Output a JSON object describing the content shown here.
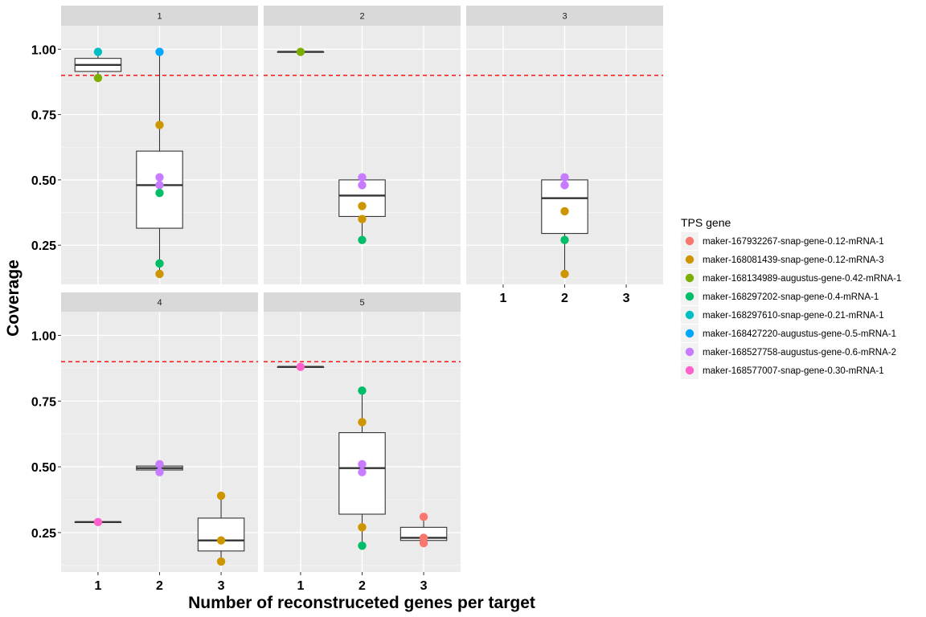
{
  "chart_data": {
    "type": "boxplot",
    "facet_label": "",
    "xlabel": "Number of reconstruceted genes per target",
    "ylabel": "Coverage",
    "x_ticks": [
      "1",
      "2",
      "3"
    ],
    "y_ticks": [
      "0.25",
      "0.50",
      "0.75",
      "1.00"
    ],
    "ylim": [
      0.1,
      1.09
    ],
    "reference_line": {
      "y": 0.9,
      "color": "#FF0000",
      "style": "dashed"
    },
    "legend": {
      "title": "TPS gene",
      "position": "right",
      "entries": [
        {
          "name": "maker-167932267-snap-gene-0.12-mRNA-1",
          "color": "#F8766D"
        },
        {
          "name": "maker-168081439-snap-gene-0.12-mRNA-3",
          "color": "#CD9600"
        },
        {
          "name": "maker-168134989-augustus-gene-0.42-mRNA-1",
          "color": "#7CAE00"
        },
        {
          "name": "maker-168297202-snap-gene-0.4-mRNA-1",
          "color": "#00BE67"
        },
        {
          "name": "maker-168297610-snap-gene-0.21-mRNA-1",
          "color": "#00BFC4"
        },
        {
          "name": "maker-168427220-augustus-gene-0.5-mRNA-1",
          "color": "#00A9FF"
        },
        {
          "name": "maker-168527758-augustus-gene-0.6-mRNA-2",
          "color": "#C77CFF"
        },
        {
          "name": "maker-168577007-snap-gene-0.30-mRNA-1",
          "color": "#FF61CC"
        }
      ]
    },
    "panels": [
      {
        "label": "1",
        "boxes": [
          {
            "x": 1,
            "lower": 0.89,
            "q1": 0.915,
            "median": 0.94,
            "q3": 0.965,
            "upper": 0.99
          },
          {
            "x": 2,
            "lower": 0.14,
            "q1": 0.315,
            "median": 0.48,
            "q3": 0.61,
            "upper": 0.99
          }
        ],
        "points": [
          {
            "x": 1,
            "y": 0.99,
            "series": 4
          },
          {
            "x": 1,
            "y": 0.89,
            "series": 2
          },
          {
            "x": 2,
            "y": 0.99,
            "series": 5
          },
          {
            "x": 2,
            "y": 0.71,
            "series": 1
          },
          {
            "x": 2,
            "y": 0.51,
            "series": 6
          },
          {
            "x": 2,
            "y": 0.48,
            "series": 6
          },
          {
            "x": 2,
            "y": 0.45,
            "series": 3
          },
          {
            "x": 2,
            "y": 0.18,
            "series": 3
          },
          {
            "x": 2,
            "y": 0.14,
            "series": 1
          }
        ]
      },
      {
        "label": "2",
        "boxes": [
          {
            "x": 1,
            "lower": 0.99,
            "q1": 0.99,
            "median": 0.99,
            "q3": 0.99,
            "upper": 0.99
          },
          {
            "x": 2,
            "lower": 0.27,
            "q1": 0.36,
            "median": 0.44,
            "q3": 0.5,
            "upper": 0.51
          }
        ],
        "points": [
          {
            "x": 1,
            "y": 0.99,
            "series": 2
          },
          {
            "x": 2,
            "y": 0.51,
            "series": 6
          },
          {
            "x": 2,
            "y": 0.48,
            "series": 6
          },
          {
            "x": 2,
            "y": 0.4,
            "series": 1
          },
          {
            "x": 2,
            "y": 0.35,
            "series": 1
          },
          {
            "x": 2,
            "y": 0.27,
            "series": 3
          }
        ]
      },
      {
        "label": "3",
        "boxes": [
          {
            "x": 2,
            "lower": 0.14,
            "q1": 0.295,
            "median": 0.43,
            "q3": 0.5,
            "upper": 0.51
          }
        ],
        "points": [
          {
            "x": 2,
            "y": 0.51,
            "series": 6
          },
          {
            "x": 2,
            "y": 0.48,
            "series": 6
          },
          {
            "x": 2,
            "y": 0.38,
            "series": 1
          },
          {
            "x": 2,
            "y": 0.27,
            "series": 3
          },
          {
            "x": 2,
            "y": 0.14,
            "series": 1
          }
        ]
      },
      {
        "label": "4",
        "boxes": [
          {
            "x": 1,
            "lower": 0.29,
            "q1": 0.29,
            "median": 0.29,
            "q3": 0.29,
            "upper": 0.29
          },
          {
            "x": 2,
            "lower": 0.48,
            "q1": 0.488,
            "median": 0.495,
            "q3": 0.503,
            "upper": 0.51
          },
          {
            "x": 3,
            "lower": 0.14,
            "q1": 0.18,
            "median": 0.22,
            "q3": 0.305,
            "upper": 0.39
          }
        ],
        "points": [
          {
            "x": 1,
            "y": 0.29,
            "series": 7
          },
          {
            "x": 2,
            "y": 0.51,
            "series": 6
          },
          {
            "x": 2,
            "y": 0.48,
            "series": 6
          },
          {
            "x": 3,
            "y": 0.39,
            "series": 1
          },
          {
            "x": 3,
            "y": 0.22,
            "series": 1
          },
          {
            "x": 3,
            "y": 0.14,
            "series": 1
          }
        ]
      },
      {
        "label": "5",
        "boxes": [
          {
            "x": 1,
            "lower": 0.88,
            "q1": 0.88,
            "median": 0.88,
            "q3": 0.88,
            "upper": 0.88
          },
          {
            "x": 2,
            "lower": 0.2,
            "q1": 0.32,
            "median": 0.495,
            "q3": 0.63,
            "upper": 0.79
          },
          {
            "x": 3,
            "lower": 0.21,
            "q1": 0.22,
            "median": 0.23,
            "q3": 0.27,
            "upper": 0.31
          }
        ],
        "points": [
          {
            "x": 1,
            "y": 0.88,
            "series": 7
          },
          {
            "x": 2,
            "y": 0.79,
            "series": 3
          },
          {
            "x": 2,
            "y": 0.67,
            "series": 1
          },
          {
            "x": 2,
            "y": 0.51,
            "series": 6
          },
          {
            "x": 2,
            "y": 0.48,
            "series": 6
          },
          {
            "x": 2,
            "y": 0.27,
            "series": 1
          },
          {
            "x": 2,
            "y": 0.2,
            "series": 3
          },
          {
            "x": 3,
            "y": 0.31,
            "series": 0
          },
          {
            "x": 3,
            "y": 0.23,
            "series": 0
          },
          {
            "x": 3,
            "y": 0.21,
            "series": 0
          }
        ]
      }
    ]
  }
}
